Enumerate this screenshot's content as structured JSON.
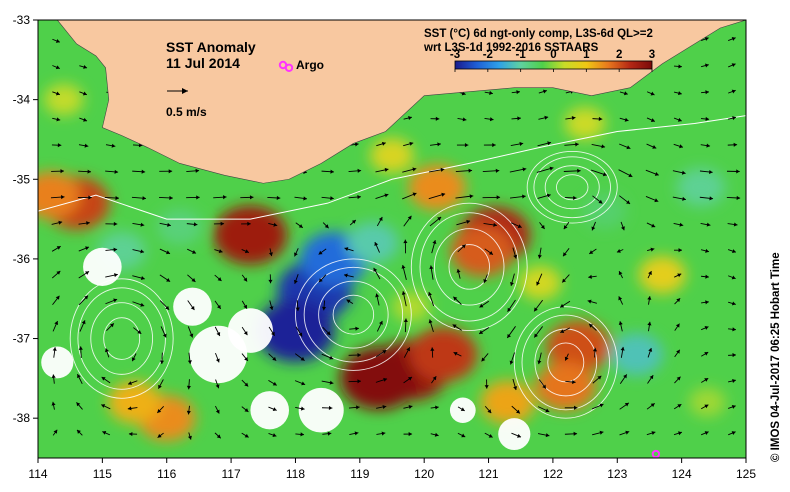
{
  "map": {
    "title": "SST Anomaly",
    "date": "11 Jul 2014",
    "argo_label": "Argo",
    "scale_label": "0.5 m/s",
    "product_line1": "SST (°C) 6d ngt-only comp, L3S-6d QL>=2",
    "product_line2": "wrt L3S-1d 1992-2016 SSTAARS",
    "credit": "© IMOS 04-Jul-2017 06:25 Hobart Time",
    "colors": {
      "land": "#f8c8a0",
      "no_data": "#ffffff",
      "argo": "#ff33ff",
      "contour": "#ffffff",
      "arrow": "#000000"
    }
  },
  "axes": {
    "lon_min": 114,
    "lon_max": 125,
    "lat_min": -38.5,
    "lat_max": -33,
    "lon_ticks": [
      "114",
      "115",
      "116",
      "117",
      "118",
      "119",
      "120",
      "121",
      "122",
      "123",
      "124",
      "125"
    ],
    "lat_ticks": [
      "-33",
      "-34",
      "-35",
      "-36",
      "-37",
      "-38"
    ]
  },
  "colorbar": {
    "ticks": [
      "-3",
      "-2",
      "-1",
      "0",
      "1",
      "2",
      "3"
    ],
    "min": -3,
    "max": 3,
    "stops": [
      "#1a1a8c",
      "#1f5fd6",
      "#2ea0e8",
      "#5fd1a0",
      "#4fd04a",
      "#c8dc28",
      "#f0c814",
      "#e8781e",
      "#b42814",
      "#7a0a0a"
    ]
  },
  "features": {
    "argo_floats": [
      {
        "lon": 117.9,
        "lat": -33.6
      },
      {
        "lon": 123.6,
        "lat": -38.45
      }
    ],
    "anomaly_patches": [
      {
        "lon": 119.8,
        "lat": -37.4,
        "anom": 2.7
      },
      {
        "lon": 119.3,
        "lat": -37.5,
        "anom": 2.9
      },
      {
        "lon": 120.3,
        "lat": -37.2,
        "anom": 2.2
      },
      {
        "lon": 121.1,
        "lat": -35.7,
        "anom": 2.4
      },
      {
        "lon": 120.9,
        "lat": -35.9,
        "anom": 1.9
      },
      {
        "lon": 122.4,
        "lat": -37.1,
        "anom": 2.0
      },
      {
        "lon": 122.2,
        "lat": -37.6,
        "anom": 1.7
      },
      {
        "lon": 114.6,
        "lat": -35.3,
        "anom": 2.1
      },
      {
        "lon": 114.2,
        "lat": -35.2,
        "anom": 1.6
      },
      {
        "lon": 117.3,
        "lat": -35.7,
        "anom": 2.6
      },
      {
        "lon": 116.0,
        "lat": -38.0,
        "anom": 1.5
      },
      {
        "lon": 115.5,
        "lat": -37.8,
        "anom": 1.2
      },
      {
        "lon": 121.3,
        "lat": -37.8,
        "anom": 1.3
      },
      {
        "lon": 123.7,
        "lat": -36.2,
        "anom": 0.8
      },
      {
        "lon": 120.2,
        "lat": -35.1,
        "anom": 1.5
      },
      {
        "lon": 118.3,
        "lat": -36.4,
        "anom": -2.7
      },
      {
        "lon": 118.0,
        "lat": -36.9,
        "anom": -2.9
      },
      {
        "lon": 118.6,
        "lat": -36.0,
        "anom": -2.2
      },
      {
        "lon": 119.2,
        "lat": -35.8,
        "anom": -1.1
      },
      {
        "lon": 115.3,
        "lat": -35.9,
        "anom": -0.9
      },
      {
        "lon": 116.2,
        "lat": -35.6,
        "anom": -0.7
      },
      {
        "lon": 124.3,
        "lat": -35.1,
        "anom": -0.9
      },
      {
        "lon": 123.3,
        "lat": -37.2,
        "anom": -1.2
      },
      {
        "lon": 122.8,
        "lat": -35.4,
        "anom": -0.6
      },
      {
        "lon": 119.8,
        "lat": -36.6,
        "anom": 0.2
      },
      {
        "lon": 121.8,
        "lat": -36.3,
        "anom": 0.5
      },
      {
        "lon": 124.4,
        "lat": -37.8,
        "anom": 0.1
      },
      {
        "lon": 114.4,
        "lat": -34.0,
        "anom": 0.3
      },
      {
        "lon": 119.5,
        "lat": -34.7,
        "anom": 0.6
      },
      {
        "lon": 122.5,
        "lat": -34.3,
        "anom": 0.4
      }
    ],
    "no_data_patches": [
      {
        "lon": 116.8,
        "lat": -37.2,
        "r": 0.45
      },
      {
        "lon": 117.3,
        "lat": -36.9,
        "r": 0.35
      },
      {
        "lon": 116.4,
        "lat": -36.6,
        "r": 0.3
      },
      {
        "lon": 115.0,
        "lat": -36.1,
        "r": 0.3
      },
      {
        "lon": 117.6,
        "lat": -37.9,
        "r": 0.3
      },
      {
        "lon": 118.4,
        "lat": -37.9,
        "r": 0.35
      },
      {
        "lon": 114.3,
        "lat": -37.3,
        "r": 0.25
      },
      {
        "lon": 121.4,
        "lat": -38.2,
        "r": 0.25
      },
      {
        "lon": 120.6,
        "lat": -37.9,
        "r": 0.2
      }
    ],
    "eddies": [
      {
        "lon": 115.3,
        "lat": -37.0,
        "rlon": 0.8,
        "rlat": 0.75
      },
      {
        "lon": 122.2,
        "lat": -37.3,
        "rlon": 0.8,
        "rlat": 0.7
      },
      {
        "lon": 122.3,
        "lat": -35.1,
        "rlon": 0.7,
        "rlat": 0.45
      },
      {
        "lon": 118.9,
        "lat": -36.7,
        "rlon": 0.9,
        "rlat": 0.7
      },
      {
        "lon": 120.7,
        "lat": -36.1,
        "rlon": 0.9,
        "rlat": 0.8
      }
    ],
    "shelf_current": [
      {
        "lon": 114.0,
        "lat": -35.4
      },
      {
        "lon": 114.9,
        "lat": -35.2
      },
      {
        "lon": 116.0,
        "lat": -35.5
      },
      {
        "lon": 117.3,
        "lat": -35.5
      },
      {
        "lon": 118.5,
        "lat": -35.3
      },
      {
        "lon": 119.5,
        "lat": -35.0
      },
      {
        "lon": 120.7,
        "lat": -34.8
      },
      {
        "lon": 121.8,
        "lat": -34.6
      },
      {
        "lon": 123.0,
        "lat": -34.4
      },
      {
        "lon": 124.2,
        "lat": -34.3
      },
      {
        "lon": 125.0,
        "lat": -34.2
      }
    ],
    "coastline": [
      {
        "lon": 114.0,
        "lat": -33.0
      },
      {
        "lon": 114.3,
        "lat": -33.0
      },
      {
        "lon": 114.6,
        "lat": -33.3
      },
      {
        "lon": 114.9,
        "lat": -33.45
      },
      {
        "lon": 115.05,
        "lat": -33.6
      },
      {
        "lon": 115.1,
        "lat": -34.0
      },
      {
        "lon": 115.0,
        "lat": -34.35
      },
      {
        "lon": 115.3,
        "lat": -34.45
      },
      {
        "lon": 115.7,
        "lat": -34.6
      },
      {
        "lon": 116.2,
        "lat": -34.8
      },
      {
        "lon": 116.9,
        "lat": -34.95
      },
      {
        "lon": 117.5,
        "lat": -35.05
      },
      {
        "lon": 117.9,
        "lat": -35.0
      },
      {
        "lon": 118.4,
        "lat": -34.8
      },
      {
        "lon": 118.9,
        "lat": -34.55
      },
      {
        "lon": 119.4,
        "lat": -34.4
      },
      {
        "lon": 120.0,
        "lat": -33.95
      },
      {
        "lon": 120.7,
        "lat": -33.9
      },
      {
        "lon": 121.4,
        "lat": -33.85
      },
      {
        "lon": 122.0,
        "lat": -33.85
      },
      {
        "lon": 122.6,
        "lat": -33.95
      },
      {
        "lon": 123.2,
        "lat": -33.85
      },
      {
        "lon": 123.7,
        "lat": -33.55
      },
      {
        "lon": 124.1,
        "lat": -33.35
      },
      {
        "lon": 124.6,
        "lat": -33.1
      },
      {
        "lon": 125.0,
        "lat": -33.0
      }
    ]
  }
}
